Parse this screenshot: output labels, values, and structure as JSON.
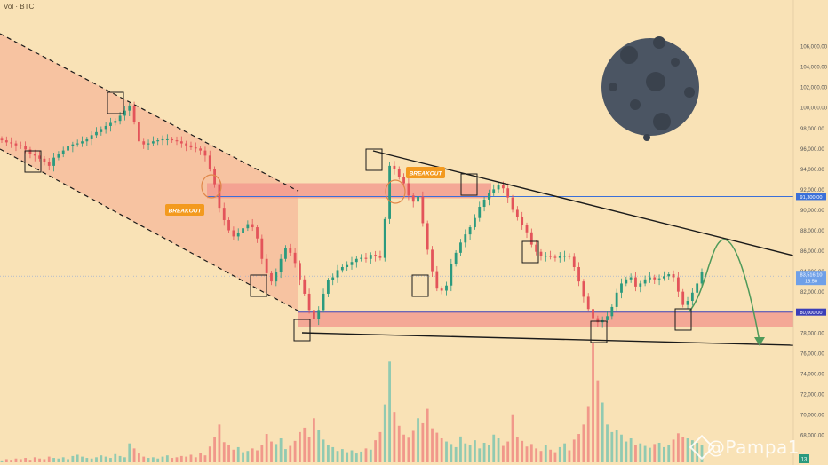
{
  "indicator_label": "Vol · BTC",
  "watermark": "@Pampa1",
  "chart_data": {
    "type": "candlestick",
    "ylim": [
      68000,
      108000
    ],
    "y_ticks": [
      "106,000.00",
      "104,000.00",
      "102,000.00",
      "100,000.00",
      "98,000.00",
      "96,000.00",
      "94,000.00",
      "92,000.00",
      "90,000.00",
      "88,000.00",
      "86,000.00",
      "84,000.00",
      "82,000.00",
      "80,000.00",
      "78,000.00",
      "76,000.00",
      "74,000.00",
      "72,000.00",
      "70,000.00",
      "68,000.00"
    ],
    "price_close": [
      96800,
      96600,
      96500,
      96300,
      96200,
      95900,
      95500,
      95300,
      95000,
      94700,
      94300,
      95100,
      95500,
      95800,
      96200,
      96400,
      96500,
      96700,
      96900,
      97300,
      97600,
      97900,
      98200,
      98500,
      98700,
      99200,
      99700,
      100200,
      98600,
      96700,
      96400,
      96500,
      96700,
      96800,
      96900,
      96900,
      96800,
      96700,
      96500,
      96300,
      96100,
      96000,
      95800,
      95300,
      94000,
      92500,
      90200,
      89000,
      88000,
      87400,
      87700,
      88200,
      88600,
      88300,
      87200,
      85200,
      83800,
      83000,
      83900,
      85200,
      86300,
      85800,
      84800,
      83200,
      81800,
      80200,
      79300,
      80200,
      81800,
      83100,
      83400,
      84100,
      84400,
      84600,
      84900,
      85200,
      85300,
      85200,
      85600,
      85500,
      85300,
      89100,
      94300,
      94000,
      93200,
      92600,
      91400,
      90800,
      91300,
      88700,
      86100,
      84000,
      82300,
      82100,
      82600,
      84700,
      85800,
      86800,
      87600,
      88300,
      89200,
      90300,
      91000,
      91600,
      92000,
      92400,
      92100,
      91200,
      90000,
      89300,
      88500,
      87800,
      86600,
      85900,
      85500,
      85500,
      85400,
      85300,
      85500,
      85500,
      85400,
      84400,
      83000,
      81500,
      80300,
      79400,
      79000,
      79200,
      79600,
      80500,
      81900,
      82800,
      83200,
      83400,
      82500,
      82800,
      83200,
      83400,
      83200,
      83300,
      83500,
      83700,
      83400,
      82000,
      80700,
      81100,
      81900,
      82800,
      83900
    ],
    "volume": [
      3,
      5,
      4,
      6,
      5,
      7,
      4,
      8,
      6,
      5,
      9,
      7,
      6,
      8,
      5,
      10,
      12,
      9,
      7,
      6,
      8,
      11,
      9,
      7,
      13,
      10,
      8,
      30,
      22,
      14,
      9,
      7,
      8,
      6,
      9,
      11,
      7,
      8,
      10,
      9,
      12,
      8,
      15,
      11,
      25,
      40,
      60,
      32,
      28,
      20,
      24,
      16,
      18,
      22,
      19,
      27,
      45,
      33,
      29,
      38,
      21,
      26,
      34,
      48,
      55,
      40,
      70,
      52,
      36,
      28,
      24,
      18,
      21,
      16,
      19,
      14,
      17,
      22,
      20,
      35,
      48,
      92,
      160,
      80,
      58,
      44,
      39,
      50,
      70,
      62,
      85,
      54,
      47,
      38,
      33,
      29,
      24,
      41,
      30,
      27,
      35,
      22,
      31,
      28,
      44,
      38,
      26,
      33,
      75,
      40,
      34,
      25,
      29,
      22,
      18,
      27,
      20,
      16,
      24,
      30,
      19,
      36,
      45,
      60,
      88,
      190,
      130,
      95,
      60,
      48,
      52,
      44,
      33,
      38,
      28,
      30,
      26,
      23,
      29,
      31,
      24,
      27,
      36,
      46,
      40,
      38,
      35,
      31,
      28
    ],
    "levels": {
      "upper_resistance": 91300,
      "lower_support": 80000,
      "current_price": 83516.1,
      "current_price_text": "83,516.10",
      "current_countdown": "18:50",
      "upper_resistance_text": "91,300.00",
      "lower_support_text": "80,000.00"
    },
    "annotations": [
      {
        "text": "BREAKOUT"
      },
      {
        "text": "BREAKOUT"
      }
    ],
    "bottom_axis_badge": "13"
  }
}
